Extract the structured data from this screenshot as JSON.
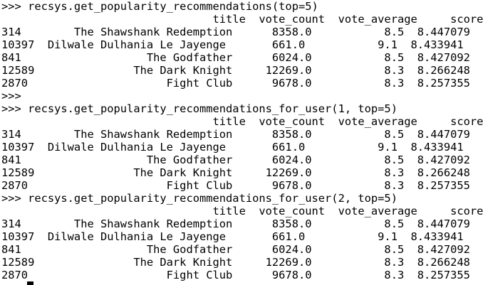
{
  "terminal": {
    "lines": [
      ">>> recsys.get_popularity_recommendations(top=5)",
      "                                title  vote_count  vote_average     score",
      "314        The Shawshank Redemption      8358.0           8.5  8.447079",
      "10397  Dilwale Dulhania Le Jayenge       661.0           9.1  8.433941",
      "841                   The Godfather      6024.0           8.5  8.427092",
      "12589               The Dark Knight     12269.0           8.3  8.266248",
      "2870                     Fight Club      9678.0           8.3  8.257355",
      ">>>",
      ">>> recsys.get_popularity_recommendations_for_user(1, top=5)",
      "                                title  vote_count  vote_average     score",
      "314        The Shawshank Redemption      8358.0           8.5  8.447079",
      "10397  Dilwale Dulhania Le Jayenge       661.0           9.1  8.433941",
      "841                   The Godfather      6024.0           8.5  8.427092",
      "12589               The Dark Knight     12269.0           8.3  8.266248",
      "2870                     Fight Club      9678.0           8.3  8.257355",
      ">>> recsys.get_popularity_recommendations_for_user(2, top=5)",
      "                                title  vote_count  vote_average     score",
      "314        The Shawshank Redemption      8358.0           8.5  8.447079",
      "10397  Dilwale Dulhania Le Jayenge       661.0           9.1  8.433941",
      "841                   The Godfather      6024.0           8.5  8.427092",
      "12589               The Dark Knight     12269.0           8.3  8.266248",
      "2870                     Fight Club      9678.0           8.3  8.257355"
    ]
  }
}
